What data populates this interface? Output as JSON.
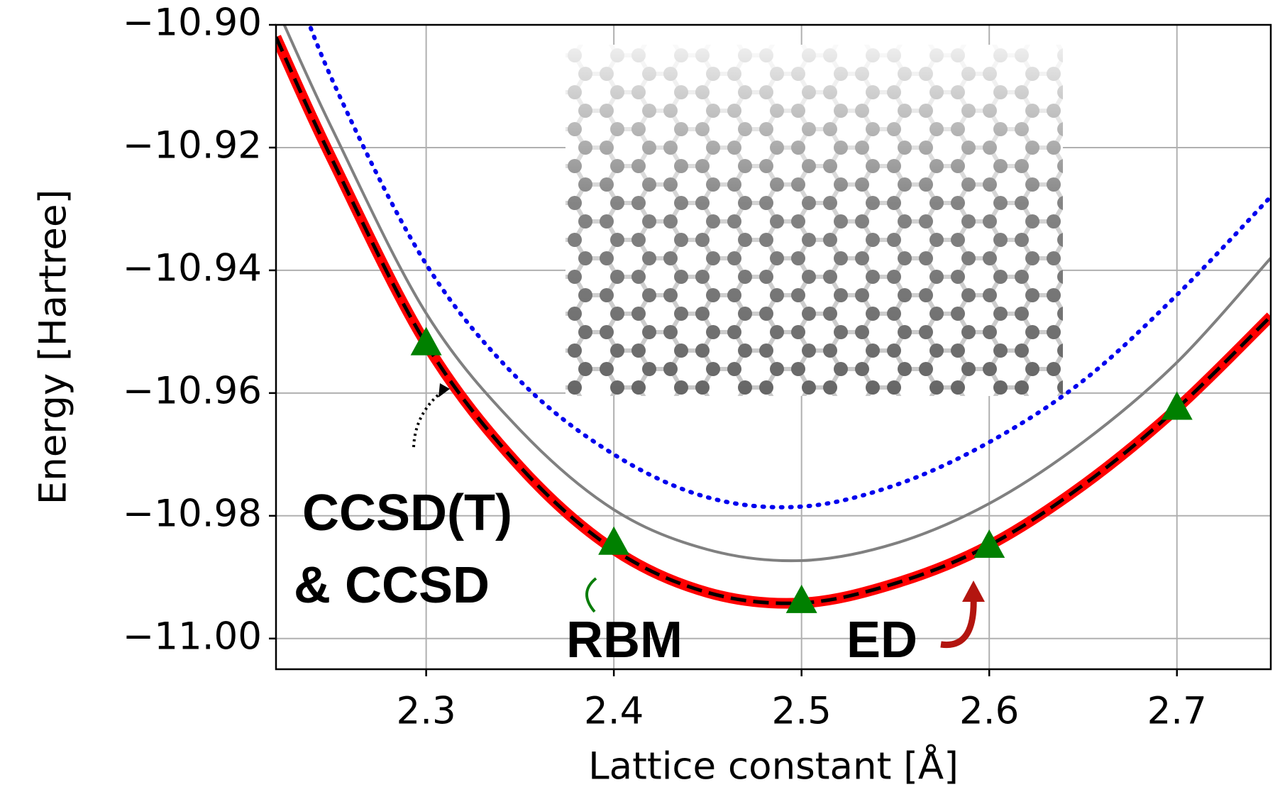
{
  "chart_data": {
    "type": "line",
    "x_label": "Lattice constant [Å]",
    "y_label": "Energy [Hartree]",
    "xlim": [
      2.22,
      2.75
    ],
    "ylim": [
      -11.005,
      -10.9
    ],
    "xticks": [
      2.3,
      2.4,
      2.5,
      2.6,
      2.7
    ],
    "yticks": [
      {
        "value": -10.9,
        "label": "−10.90"
      },
      {
        "value": -10.92,
        "label": "−10.92"
      },
      {
        "value": -10.94,
        "label": "−10.94"
      },
      {
        "value": -10.96,
        "label": "−10.96"
      },
      {
        "value": -10.98,
        "label": "−10.98"
      },
      {
        "value": -11.0,
        "label": "−11.00"
      }
    ],
    "grid": true,
    "x": [
      2.22,
      2.25,
      2.3,
      2.35,
      2.4,
      2.45,
      2.5,
      2.55,
      2.6,
      2.65,
      2.7,
      2.75
    ],
    "series": [
      {
        "color": "#0000ee",
        "style": "dotted",
        "values": [
          -10.885,
          -10.909,
          -10.939,
          -10.958,
          -10.97,
          -10.977,
          -10.9785,
          -10.975,
          -10.968,
          -10.958,
          -10.944,
          -10.928
        ]
      },
      {
        "color": "#808080",
        "style": "solid",
        "values": [
          -10.897,
          -10.917,
          -10.947,
          -10.966,
          -10.979,
          -10.9855,
          -10.9873,
          -10.9845,
          -10.978,
          -10.968,
          -10.955,
          -10.938
        ]
      },
      {
        "color": "#ff0000",
        "style": "thick",
        "values": [
          -10.902,
          -10.922,
          -10.952,
          -10.972,
          -10.9855,
          -10.9925,
          -10.9942,
          -10.991,
          -10.9848,
          -10.975,
          -10.9625,
          -10.9475
        ]
      },
      {
        "color": "#000000",
        "style": "dashed",
        "values": [
          -10.902,
          -10.922,
          -10.952,
          -10.972,
          -10.9855,
          -10.9925,
          -10.9942,
          -10.991,
          -10.9848,
          -10.975,
          -10.9625,
          -10.9475
        ]
      }
    ],
    "points": {
      "color": "#008000",
      "x": [
        2.3,
        2.4,
        2.5,
        2.6,
        2.7
      ],
      "values": [
        -10.952,
        -10.9845,
        -10.994,
        -10.985,
        -10.9625
      ]
    },
    "annotations": [
      {
        "text": "CCSD(T)",
        "color": "#000000"
      },
      {
        "text": "& CCSD",
        "color": "#d9861a"
      },
      {
        "text": "RBM",
        "color": "#0a7d0a"
      },
      {
        "text": "ED",
        "color": "#b3150f"
      }
    ]
  }
}
